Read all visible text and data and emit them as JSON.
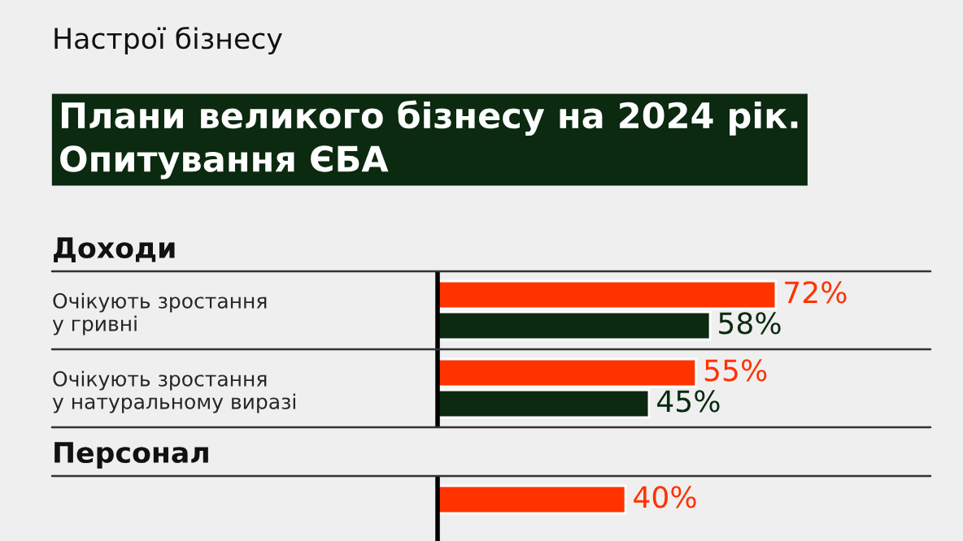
{
  "chart_data": {
    "type": "bar",
    "orientation": "horizontal",
    "subtitle": "Настрої бізнесу",
    "title": "Плани великого бізнесу на 2024 рік.\nОпитування ЄБА",
    "annotations": [
      "Доходи",
      "Персонал"
    ],
    "categories": [
      "Очікують зростання\nу гривні",
      "Очікують зростання\nу натуральному виразі",
      null
    ],
    "series": [
      {
        "color": "#ff3300",
        "values": [
          72,
          55,
          40
        ],
        "value_labels": [
          "72%",
          "55%",
          "40%"
        ]
      },
      {
        "color": "#0b2a10",
        "values": [
          58,
          45,
          null
        ],
        "value_labels": [
          "58%",
          "45%",
          null
        ]
      }
    ]
  }
}
